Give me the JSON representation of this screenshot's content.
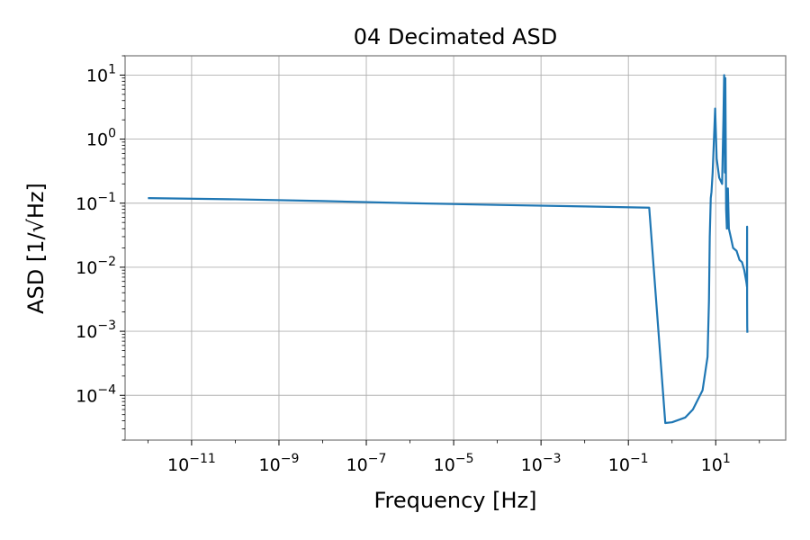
{
  "chart_data": {
    "type": "line",
    "title": "04 Decimated ASD",
    "xlabel": "Frequency [Hz]",
    "ylabel": "ASD [1/√Hz]",
    "xscale": "log",
    "yscale": "log",
    "xlim": [
      3e-13,
      400
    ],
    "ylim": [
      2e-05,
      20
    ],
    "grid": true,
    "x_ticks": [
      {
        "value": 1e-11,
        "base": "10",
        "exp": "−11"
      },
      {
        "value": 1e-09,
        "base": "10",
        "exp": "−9"
      },
      {
        "value": 1e-07,
        "base": "10",
        "exp": "−7"
      },
      {
        "value": 1e-05,
        "base": "10",
        "exp": "−5"
      },
      {
        "value": 0.001,
        "base": "10",
        "exp": "−3"
      },
      {
        "value": 0.1,
        "base": "10",
        "exp": "−1"
      },
      {
        "value": 10,
        "base": "10",
        "exp": "1"
      }
    ],
    "y_ticks": [
      {
        "value": 10,
        "base": "10",
        "exp": "1"
      },
      {
        "value": 1,
        "base": "10",
        "exp": "0"
      },
      {
        "value": 0.1,
        "base": "10",
        "exp": "−1"
      },
      {
        "value": 0.01,
        "base": "10",
        "exp": "−2"
      },
      {
        "value": 0.001,
        "base": "10",
        "exp": "−3"
      },
      {
        "value": 0.0001,
        "base": "10",
        "exp": "−4"
      }
    ],
    "series": [
      {
        "color": "#1f77b4",
        "x": [
          1e-12,
          1e-10,
          1e-08,
          1e-06,
          0.0001,
          0.01,
          0.3,
          0.7,
          1.0,
          2.0,
          3.0,
          5.0,
          6.5,
          7.0,
          7.3,
          7.7,
          8.0,
          8.5,
          9.0,
          9.7,
          10.5,
          12.0,
          14.0,
          15.0,
          15.6,
          16.2,
          16.6,
          17.3,
          18.0,
          19.0,
          20.0,
          22.0,
          25.0,
          30.0,
          35.0,
          40.0,
          45.0,
          48.0,
          50.0,
          51.0,
          51.8,
          52.3,
          52.3,
          52.6,
          53.0
        ],
        "y": [
          0.12,
          0.115,
          0.108,
          0.1,
          0.094,
          0.089,
          0.085,
          3.7e-05,
          3.8e-05,
          4.5e-05,
          6e-05,
          0.00012,
          0.0004,
          0.003,
          0.03,
          0.12,
          0.15,
          0.3,
          0.8,
          3.0,
          0.5,
          0.25,
          0.2,
          2.0,
          10.0,
          0.3,
          9.0,
          0.08,
          0.04,
          0.17,
          0.04,
          0.03,
          0.02,
          0.018,
          0.013,
          0.012,
          0.009,
          0.007,
          0.006,
          0.0055,
          0.005,
          0.043,
          0.003,
          0.0012,
          0.00095
        ]
      }
    ]
  }
}
